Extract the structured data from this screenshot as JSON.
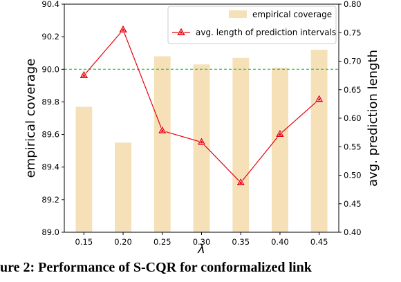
{
  "caption": "ure 2: Performance of S-CQR for conformalized link",
  "chart_data": {
    "type": "bar+line",
    "categories": [
      "0.15",
      "0.20",
      "0.25",
      "0.30",
      "0.35",
      "0.40",
      "0.45"
    ],
    "xlabel": "λ",
    "ylabel_left": "empirical coverage",
    "ylabel_right": "avg. prediction length",
    "ylim_left": [
      89.0,
      90.4
    ],
    "ylim_right": [
      0.4,
      0.8
    ],
    "yticks_left": [
      "89.0",
      "89.2",
      "89.4",
      "89.6",
      "89.8",
      "90.0",
      "90.2",
      "90.4"
    ],
    "yticks_right": [
      "0.40",
      "0.45",
      "0.50",
      "0.55",
      "0.60",
      "0.65",
      "0.70",
      "0.75",
      "0.80"
    ],
    "reference_line": {
      "axis": "left",
      "value": 90.0,
      "style": "dashed",
      "color": "#2ecc40"
    },
    "legend_position": "top-right",
    "series": [
      {
        "name": "empirical coverage",
        "kind": "bar",
        "axis": "left",
        "color": "#f5e0b8",
        "values": [
          89.77,
          89.55,
          90.08,
          90.03,
          90.07,
          90.01,
          90.12
        ]
      },
      {
        "name": "avg. length of prediction intervals",
        "kind": "line",
        "axis": "right",
        "color": "#e8000b",
        "marker": "triangle",
        "values": [
          0.675,
          0.755,
          0.578,
          0.558,
          0.487,
          0.572,
          0.633
        ]
      }
    ]
  }
}
